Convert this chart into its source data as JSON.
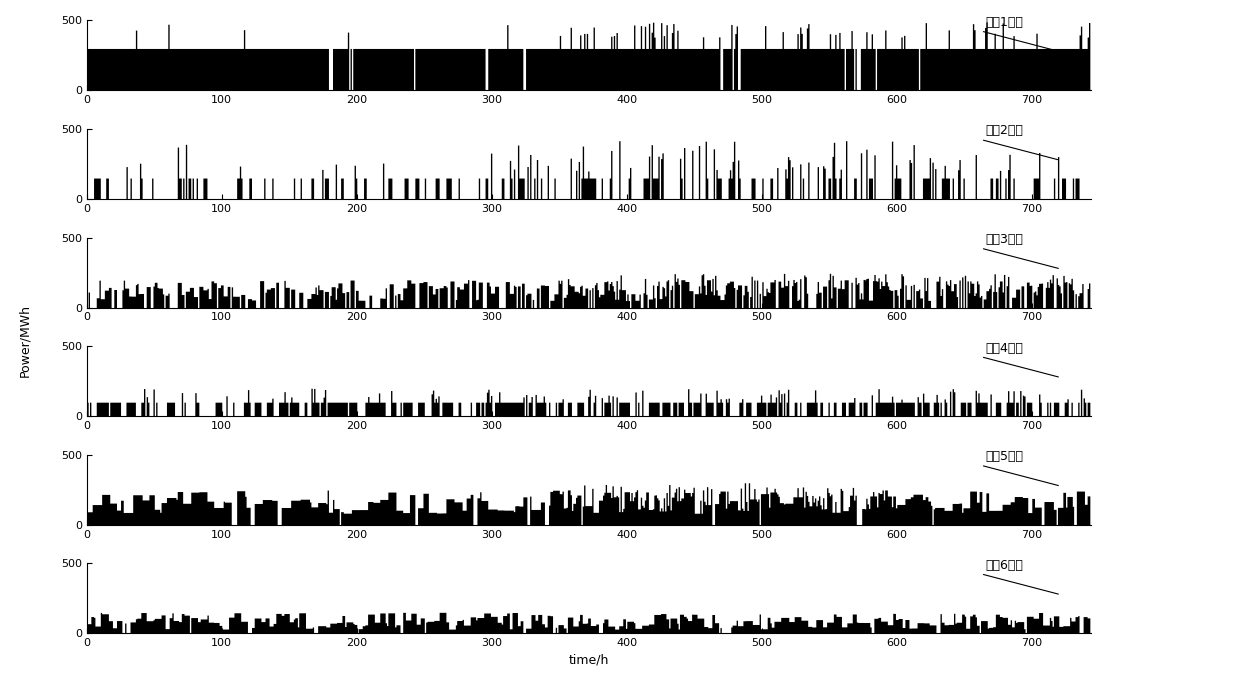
{
  "n_hours": 744,
  "subplot_labels": [
    "机组1出力",
    "机组2出力",
    "机组3出力",
    "机组4出力",
    "机组5出力",
    "机组6出力"
  ],
  "ylabel": "Power/MWh",
  "xlabel": "time/h",
  "ylim": [
    0,
    500
  ],
  "yticks": [
    0,
    500
  ],
  "xticks": [
    0,
    100,
    200,
    300,
    400,
    500,
    600,
    700
  ],
  "line_color": "#000000",
  "bg_color": "#ffffff",
  "label_fontsize": 9,
  "axis_fontsize": 8,
  "annotation_fontsize": 9,
  "figure_width": 12.4,
  "figure_height": 6.81
}
